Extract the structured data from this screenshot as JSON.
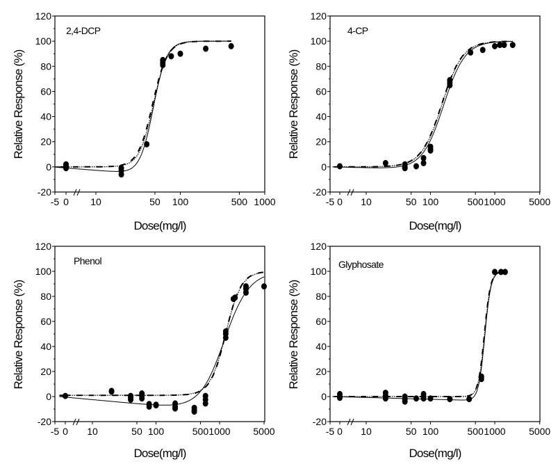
{
  "chart_data": [
    {
      "type": "scatter",
      "panel_label": "2,4-DCP",
      "xlabel": "Dose(mg/l)",
      "ylabel": "Relative Response (%)",
      "xscale": "log (with broken linear segment -5..0)",
      "xticks": [
        "-5",
        "0",
        "10",
        "50",
        "100",
        "500",
        "1000"
      ],
      "xtick_values": [
        -5,
        0,
        10,
        50,
        100,
        500,
        1000
      ],
      "xlim": [
        -5,
        1000
      ],
      "yticks": [
        "-20",
        "0",
        "20",
        "40",
        "60",
        "80",
        "100",
        "120"
      ],
      "ylim": [
        -20,
        120
      ],
      "points": [
        {
          "x": 0,
          "y": 2
        },
        {
          "x": 0,
          "y": 0
        },
        {
          "x": 0,
          "y": -1
        },
        {
          "x": 0,
          "y": 1
        },
        {
          "x": 20,
          "y": -1
        },
        {
          "x": 20,
          "y": -3
        },
        {
          "x": 20,
          "y": -6
        },
        {
          "x": 40,
          "y": 18
        },
        {
          "x": 62,
          "y": 85
        },
        {
          "x": 62,
          "y": 83
        },
        {
          "x": 62,
          "y": 81
        },
        {
          "x": 78,
          "y": 88
        },
        {
          "x": 100,
          "y": 90
        },
        {
          "x": 200,
          "y": 94
        },
        {
          "x": 400,
          "y": 96
        }
      ],
      "series": [
        {
          "name": "fit-solid",
          "style": "solid",
          "model": {
            "bottom": -5,
            "top": 100,
            "ec50": 48,
            "hill": 5.5,
            "drift": true
          }
        },
        {
          "name": "fit-dashed",
          "style": "dashed",
          "model": {
            "bottom": 0,
            "top": 100,
            "ec50": 47,
            "hill": 5.0
          }
        },
        {
          "name": "fit-dotted",
          "style": "dotted",
          "model": {
            "bottom": 0,
            "top": 100,
            "ec50": 48,
            "hill": 5.2
          }
        }
      ]
    },
    {
      "type": "scatter",
      "panel_label": "4-CP",
      "xlabel": "Dose(mg/l)",
      "ylabel": "Relative Response (%)",
      "xticks": [
        "-5",
        "0",
        "10",
        "50",
        "100",
        "500",
        "1000",
        "5000"
      ],
      "xtick_values": [
        -5,
        0,
        10,
        50,
        100,
        500,
        1000,
        5000
      ],
      "xlim": [
        -5,
        5000
      ],
      "yticks": [
        "-20",
        "0",
        "20",
        "40",
        "60",
        "80",
        "100",
        "120"
      ],
      "ylim": [
        -20,
        120
      ],
      "points": [
        {
          "x": 0,
          "y": 0.5
        },
        {
          "x": 20,
          "y": 3
        },
        {
          "x": 40,
          "y": 2
        },
        {
          "x": 40,
          "y": 0
        },
        {
          "x": 40,
          "y": -1
        },
        {
          "x": 60,
          "y": 0.5
        },
        {
          "x": 78,
          "y": 7
        },
        {
          "x": 78,
          "y": 3
        },
        {
          "x": 100,
          "y": 16
        },
        {
          "x": 100,
          "y": 14
        },
        {
          "x": 100,
          "y": 13
        },
        {
          "x": 200,
          "y": 69
        },
        {
          "x": 200,
          "y": 67
        },
        {
          "x": 200,
          "y": 65
        },
        {
          "x": 420,
          "y": 91
        },
        {
          "x": 650,
          "y": 93
        },
        {
          "x": 1000,
          "y": 96
        },
        {
          "x": 1200,
          "y": 97
        },
        {
          "x": 1400,
          "y": 97
        },
        {
          "x": 1900,
          "y": 97
        }
      ],
      "series": [
        {
          "name": "fit-solid",
          "style": "solid",
          "model": {
            "bottom": -2,
            "top": 100,
            "ec50": 160,
            "hill": 2.6,
            "drift": true
          }
        },
        {
          "name": "fit-dashed",
          "style": "dashed",
          "model": {
            "bottom": 0,
            "top": 100,
            "ec50": 150,
            "hill": 2.7
          }
        },
        {
          "name": "fit-dotted",
          "style": "dotted",
          "model": {
            "bottom": 0,
            "top": 100,
            "ec50": 152,
            "hill": 2.7
          }
        }
      ]
    },
    {
      "type": "scatter",
      "panel_label": "Phenol",
      "xlabel": "Dose(mg/l)",
      "ylabel": "Relative Response (%)",
      "xticks": [
        "-5",
        "0",
        "10",
        "50",
        "100",
        "500",
        "1000",
        "5000"
      ],
      "xtick_values": [
        -5,
        0,
        10,
        50,
        100,
        500,
        1000,
        5000
      ],
      "xlim": [
        -5,
        5000
      ],
      "yticks": [
        "-20",
        "0",
        "20",
        "40",
        "60",
        "80",
        "100",
        "120"
      ],
      "ylim": [
        -20,
        120
      ],
      "points": [
        {
          "x": 0,
          "y": 0.5
        },
        {
          "x": 20,
          "y": 4.5
        },
        {
          "x": 20,
          "y": 4
        },
        {
          "x": 40,
          "y": 0.5
        },
        {
          "x": 40,
          "y": -1
        },
        {
          "x": 40,
          "y": -2.5
        },
        {
          "x": 60,
          "y": 2.5
        },
        {
          "x": 60,
          "y": 0.5
        },
        {
          "x": 60,
          "y": -1.5
        },
        {
          "x": 78,
          "y": -6
        },
        {
          "x": 78,
          "y": -8
        },
        {
          "x": 100,
          "y": -6.5
        },
        {
          "x": 100,
          "y": -7
        },
        {
          "x": 200,
          "y": -5.5
        },
        {
          "x": 200,
          "y": -8
        },
        {
          "x": 200,
          "y": -9.5
        },
        {
          "x": 400,
          "y": -9
        },
        {
          "x": 400,
          "y": -11
        },
        {
          "x": 400,
          "y": -12
        },
        {
          "x": 600,
          "y": 0.5
        },
        {
          "x": 600,
          "y": -2.5
        },
        {
          "x": 600,
          "y": -5.5
        },
        {
          "x": 1250,
          "y": 52
        },
        {
          "x": 1250,
          "y": 50
        },
        {
          "x": 1250,
          "y": 47
        },
        {
          "x": 1650,
          "y": 78
        },
        {
          "x": 1750,
          "y": 79
        },
        {
          "x": 2600,
          "y": 88
        },
        {
          "x": 2600,
          "y": 86
        },
        {
          "x": 2600,
          "y": 83
        },
        {
          "x": 5000,
          "y": 88
        }
      ],
      "series": [
        {
          "name": "fit-solid",
          "style": "solid",
          "model": {
            "bottom": -11,
            "top": 100,
            "ec50": 1180,
            "hill": 2.2,
            "drift": true
          }
        },
        {
          "name": "fit-dashed",
          "style": "dashed",
          "model": {
            "bottom": 1,
            "top": 100,
            "ec50": 1250,
            "hill": 3.6
          }
        },
        {
          "name": "fit-dotted",
          "style": "dotted",
          "model": {
            "bottom": 1,
            "top": 100,
            "ec50": 1250,
            "hill": 3.5
          }
        }
      ]
    },
    {
      "type": "scatter",
      "panel_label": "Glyphosate",
      "xlabel": "Dose(mg/l)",
      "ylabel": "Relative Response (%)",
      "xticks": [
        "-5",
        "0",
        "10",
        "50",
        "100",
        "500",
        "1000",
        "5000"
      ],
      "xtick_values": [
        -5,
        0,
        10,
        50,
        100,
        500,
        1000,
        5000
      ],
      "xlim": [
        -5,
        5000
      ],
      "yticks": [
        "-20",
        "0",
        "20",
        "40",
        "60",
        "80",
        "100",
        "120"
      ],
      "ylim": [
        -20,
        120
      ],
      "points": [
        {
          "x": 0,
          "y": 2
        },
        {
          "x": 0,
          "y": 0
        },
        {
          "x": 0,
          "y": -1
        },
        {
          "x": 20,
          "y": 3
        },
        {
          "x": 20,
          "y": 0.5
        },
        {
          "x": 20,
          "y": -1.5
        },
        {
          "x": 40,
          "y": 0
        },
        {
          "x": 40,
          "y": -2
        },
        {
          "x": 40,
          "y": -4
        },
        {
          "x": 60,
          "y": -1.5
        },
        {
          "x": 78,
          "y": 2
        },
        {
          "x": 78,
          "y": 0
        },
        {
          "x": 78,
          "y": -1.5
        },
        {
          "x": 100,
          "y": -1.5
        },
        {
          "x": 200,
          "y": -2
        },
        {
          "x": 400,
          "y": -2
        },
        {
          "x": 620,
          "y": 16
        },
        {
          "x": 620,
          "y": 14
        },
        {
          "x": 1000,
          "y": 99.5
        },
        {
          "x": 1250,
          "y": 99.5
        },
        {
          "x": 1450,
          "y": 99.5
        }
      ],
      "series": [
        {
          "name": "fit-solid",
          "style": "solid",
          "model": {
            "bottom": -3,
            "top": 100,
            "ec50": 700,
            "hill": 9,
            "drift": true
          }
        },
        {
          "name": "fit-dashed",
          "style": "dashed",
          "model": {
            "bottom": 0,
            "top": 100,
            "ec50": 690,
            "hill": 9
          }
        },
        {
          "name": "fit-dotted",
          "style": "dotted",
          "model": {
            "bottom": 0,
            "top": 100,
            "ec50": 695,
            "hill": 9
          }
        }
      ]
    }
  ]
}
